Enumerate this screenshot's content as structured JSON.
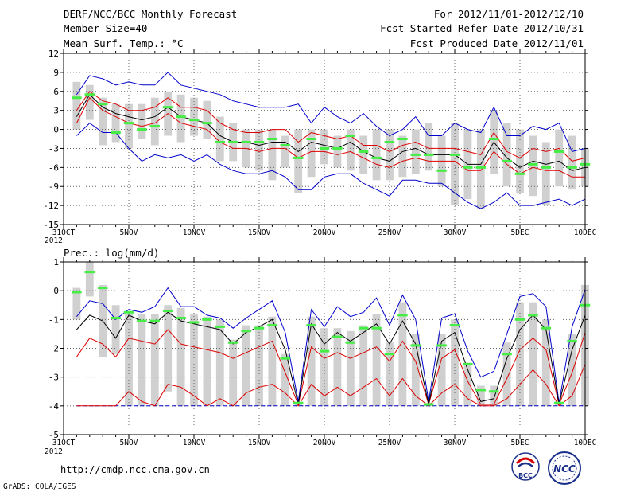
{
  "header": {
    "title": "DERF/NCC/BCC Monthly Forecast",
    "member_size": "Member Size=40",
    "variable": "Mean Surf. Temp.: °C",
    "period": "For 2012/11/01-2012/12/10",
    "started": "Fcst Started Refer Date 2012/10/31",
    "produced": "Fcst Produced Date 2012/11/01"
  },
  "footer": {
    "url": "http://cmdp.ncc.cma.gov.cn",
    "grads": "GrADS: COLA/IGES",
    "logo_bcc": "BCC",
    "logo_ncc": "NCC"
  },
  "colors": {
    "envelope": "#0000cc",
    "spread": "#dd0000",
    "mean": "#000000",
    "box": "#d0d0d0",
    "observed": "#44ee44",
    "grid": "#666666"
  },
  "chart_data": [
    {
      "type": "line",
      "title": "Mean Surf. Temp.: °C",
      "ylabel": "°C",
      "ylim": [
        -15,
        12
      ],
      "yticks": [
        12,
        9,
        6,
        3,
        0,
        -3,
        -6,
        -9,
        -12,
        -15
      ],
      "x_start_day": 0,
      "x_end_day": 40,
      "xtick_days": [
        0,
        5,
        10,
        15,
        20,
        25,
        30,
        35,
        40
      ],
      "xtick_labels": [
        "31OCT",
        "5NOV",
        "10NOV",
        "15NOV",
        "20NOV",
        "25NOV",
        "30NOV",
        "5DEC",
        "10DEC"
      ],
      "x_sub_label": "2012",
      "days": [
        1,
        2,
        3,
        4,
        5,
        6,
        7,
        8,
        9,
        10,
        11,
        12,
        13,
        14,
        15,
        16,
        17,
        18,
        19,
        20,
        21,
        22,
        23,
        24,
        25,
        26,
        27,
        28,
        29,
        30,
        31,
        32,
        33,
        34,
        35,
        36,
        37,
        38,
        39,
        40
      ],
      "box_low": [
        0,
        1.5,
        -2.5,
        -2,
        -3,
        -1.5,
        -2.5,
        -1,
        -2,
        -1,
        -1.5,
        -5,
        -5,
        -6,
        -6.5,
        -8,
        -6,
        -10,
        -7.5,
        -5.5,
        -6,
        -6.5,
        -7,
        -8,
        -8,
        -7.5,
        -7,
        -6.5,
        -9,
        -12,
        -11,
        -12.5,
        -7,
        -9,
        -10,
        -10.5,
        -12,
        -9,
        -9.5,
        -9
      ],
      "box_high": [
        7.5,
        7,
        5,
        4,
        4,
        4,
        5,
        6,
        5.5,
        5,
        4.5,
        2,
        1,
        0,
        0,
        0,
        -1,
        0,
        0,
        0,
        -1,
        0,
        -1,
        0,
        0,
        -1,
        0,
        1,
        -1,
        1,
        0,
        0,
        3,
        1,
        0,
        -1,
        -2,
        0,
        -1,
        -3
      ],
      "observed": [
        5,
        5.5,
        4,
        -0.5,
        1,
        0,
        0.5,
        3.5,
        2,
        1.5,
        1,
        -2,
        -2,
        -2,
        -2,
        -1.5,
        -2.5,
        -4.5,
        -1.5,
        -3,
        -3,
        -1,
        -3.5,
        -4.5,
        -2,
        -1.5,
        -4,
        -4,
        -6.5,
        -4,
        -6,
        -6,
        -1.5,
        -5,
        -7,
        -5.5,
        -6,
        -3.5,
        -6,
        -5.5
      ],
      "env_high": [
        5.5,
        8.5,
        8,
        7,
        7.5,
        7,
        7,
        9,
        7,
        6.5,
        6,
        5.5,
        4.5,
        4,
        3.5,
        3.5,
        3.5,
        4,
        1,
        3.5,
        2,
        1,
        2.5,
        0.5,
        -1,
        0,
        2,
        -1,
        -1,
        1,
        0,
        -0.5,
        3.5,
        -1,
        -1,
        0.5,
        0,
        1,
        -3.5,
        -3
      ],
      "spread_high": [
        3,
        6,
        4.5,
        4,
        3,
        3,
        3.5,
        5,
        3.5,
        3.5,
        3,
        1,
        0,
        -0.5,
        -0.5,
        0,
        0,
        -2,
        -0.5,
        -1,
        -1.5,
        -1,
        -2.5,
        -2.5,
        -3.5,
        -2.5,
        -2,
        -3,
        -3,
        -3,
        -3.5,
        -4,
        -0.5,
        -3.5,
        -4.5,
        -3,
        -3.5,
        -3,
        -5,
        -4.5
      ],
      "mean": [
        2,
        5.5,
        3.5,
        2.5,
        2,
        1.5,
        2,
        3.5,
        2,
        1.5,
        1,
        -1,
        -2,
        -2,
        -2.5,
        -2,
        -2,
        -3.5,
        -2,
        -2.5,
        -3,
        -2,
        -3.5,
        -4.5,
        -5,
        -3.5,
        -3,
        -4,
        -4,
        -4,
        -5.5,
        -5.5,
        -2,
        -4.5,
        -6,
        -5,
        -5.5,
        -5,
        -6.5,
        -6
      ],
      "spread_low": [
        1,
        5,
        3,
        2,
        1,
        0.5,
        1,
        2.5,
        1,
        0.5,
        0,
        -2,
        -3,
        -3,
        -3.5,
        -3,
        -3,
        -4.5,
        -3.5,
        -3.5,
        -4,
        -3.5,
        -4.5,
        -5.5,
        -6,
        -5,
        -4.5,
        -5,
        -5,
        -5,
        -6.5,
        -6.5,
        -3.5,
        -5.5,
        -7,
        -6,
        -6.5,
        -6.5,
        -7.5,
        -7.5
      ],
      "env_low": [
        -1,
        1,
        -0.5,
        -0.5,
        -3,
        -5,
        -4,
        -4.5,
        -4,
        -5,
        -4,
        -5.5,
        -6.5,
        -7,
        -7,
        -6.5,
        -7.5,
        -9.5,
        -9.5,
        -7.5,
        -7,
        -7,
        -8.5,
        -9.5,
        -10.5,
        -8,
        -8,
        -8.5,
        -8.5,
        -10,
        -11.5,
        -12.5,
        -11.5,
        -10,
        -12,
        -12,
        -11.5,
        -11,
        -12,
        -11
      ]
    },
    {
      "type": "line",
      "title": "Prec.: log(mm/d)",
      "ylabel": "log(mm/d)",
      "ylim": [
        -5,
        1
      ],
      "yticks": [
        1,
        0,
        -1,
        -2,
        -3,
        -4,
        -5
      ],
      "floor": -4,
      "x_start_day": 0,
      "x_end_day": 40,
      "xtick_days": [
        0,
        5,
        10,
        15,
        20,
        25,
        30,
        35,
        40
      ],
      "xtick_labels": [
        "31OCT",
        "5NOV",
        "10NOV",
        "15NOV",
        "20NOV",
        "25NOV",
        "30NOV",
        "5DEC",
        "10DEC"
      ],
      "x_sub_label": "2012",
      "days": [
        1,
        2,
        3,
        4,
        5,
        6,
        7,
        8,
        9,
        10,
        11,
        12,
        13,
        14,
        15,
        16,
        17,
        18,
        19,
        20,
        21,
        22,
        23,
        24,
        25,
        26,
        27,
        28,
        29,
        30,
        31,
        32,
        33,
        34,
        35,
        36,
        37,
        38,
        39,
        40
      ],
      "box_low": [
        -1,
        -0.2,
        -2.3,
        -2.2,
        -4,
        -4,
        -4,
        -3.5,
        -4,
        -4,
        -4,
        -4,
        -4,
        -4,
        -4,
        -4,
        -4,
        -4,
        -4,
        -4,
        -4,
        -4,
        -4,
        -4,
        -4,
        -4,
        -4,
        -4,
        -4,
        -4,
        -4,
        -4,
        -4,
        -4,
        -4,
        -4,
        -4,
        -4,
        -4,
        -4
      ],
      "box_high": [
        0.1,
        1,
        0.2,
        -0.5,
        -0.8,
        -0.8,
        -0.8,
        -0.5,
        -0.6,
        -0.8,
        -0.9,
        -1,
        -1.7,
        -1.2,
        -1.2,
        -0.9,
        -2.2,
        -3.9,
        -0.9,
        -1.3,
        -1.3,
        -1.4,
        -1.2,
        -0.8,
        -1.8,
        -0.4,
        -1.5,
        -3.9,
        -1.5,
        -1,
        -2.5,
        -3.3,
        -3.3,
        -1.8,
        -0.4,
        -0.4,
        -1,
        -3.9,
        -1.5,
        0.2
      ],
      "observed": [
        -0.05,
        0.65,
        0.1,
        -0.95,
        -0.75,
        -1.05,
        -1.05,
        -0.7,
        -0.95,
        -1.1,
        -1.0,
        -1.25,
        -1.8,
        -1.4,
        -1.3,
        -1.2,
        -2.35,
        -3.9,
        -1.2,
        -2.1,
        -1.6,
        -1.8,
        -1.3,
        -1.3,
        -2.2,
        -0.85,
        -1.9,
        -3.95,
        -1.9,
        -1.2,
        -2.55,
        -3.45,
        -3.5,
        -2.2,
        -1.0,
        -0.85,
        -1.3,
        -3.9,
        -1.75,
        -0.5
      ],
      "env_high": [
        -0.9,
        -0.35,
        -0.45,
        -1.0,
        -0.65,
        -0.75,
        -0.55,
        0.1,
        -0.55,
        -0.55,
        -0.85,
        -0.95,
        -1.3,
        -0.95,
        -0.65,
        -0.35,
        -1.45,
        -3.85,
        -0.65,
        -1.25,
        -0.55,
        -0.9,
        -0.75,
        -0.25,
        -1.2,
        -0.15,
        -1.0,
        -3.85,
        -0.95,
        -0.8,
        -2.1,
        -3.0,
        -2.8,
        -1.5,
        -0.2,
        -0.1,
        -0.55,
        -3.9,
        -1.25,
        0.05
      ],
      "mean": [
        -1.35,
        -0.85,
        -1.05,
        -1.65,
        -0.85,
        -1.05,
        -1.15,
        -0.75,
        -1.05,
        -1.15,
        -1.25,
        -1.35,
        -1.85,
        -1.45,
        -1.25,
        -1.0,
        -2.05,
        -3.95,
        -1.15,
        -1.85,
        -1.45,
        -1.75,
        -1.45,
        -1.15,
        -1.85,
        -1.05,
        -1.85,
        -3.95,
        -1.75,
        -1.45,
        -2.75,
        -3.85,
        -3.75,
        -2.35,
        -1.35,
        -0.85,
        -1.35,
        -3.95,
        -2.05,
        -0.85
      ],
      "spread_high": [
        -2.3,
        -1.65,
        -1.85,
        -2.3,
        -1.65,
        -1.75,
        -1.85,
        -1.35,
        -1.85,
        -1.95,
        -2.05,
        -2.15,
        -2.35,
        -2.15,
        -1.95,
        -1.75,
        -2.85,
        -3.95,
        -1.95,
        -2.35,
        -2.15,
        -2.35,
        -2.15,
        -1.95,
        -2.45,
        -1.75,
        -2.45,
        -3.95,
        -2.35,
        -2.05,
        -3.15,
        -3.95,
        -3.95,
        -3.05,
        -2.05,
        -1.65,
        -2.05,
        -3.95,
        -2.85,
        -1.45
      ],
      "spread_low": [
        -4,
        -4,
        -4,
        -4,
        -3.5,
        -3.85,
        -4,
        -3.25,
        -3.35,
        -3.65,
        -4,
        -3.75,
        -4,
        -3.55,
        -3.35,
        -3.25,
        -3.55,
        -4,
        -3.25,
        -3.65,
        -3.35,
        -3.65,
        -3.35,
        -3.05,
        -3.65,
        -3.05,
        -3.65,
        -4,
        -3.55,
        -3.25,
        -3.75,
        -4,
        -4,
        -3.75,
        -3.25,
        -2.75,
        -3.25,
        -4,
        -3.65,
        -2.55
      ],
      "env_low": [
        -4,
        -4,
        -4,
        -4,
        -4,
        -4,
        -4,
        -4,
        -4,
        -4,
        -4,
        -4,
        -4,
        -4,
        -4,
        -4,
        -4,
        -4,
        -4,
        -4,
        -4,
        -4,
        -4,
        -4,
        -4,
        -4,
        -4,
        -4,
        -4,
        -4,
        -4,
        -4,
        -4,
        -4,
        -4,
        -4,
        -4,
        -4,
        -4,
        -4
      ]
    }
  ]
}
